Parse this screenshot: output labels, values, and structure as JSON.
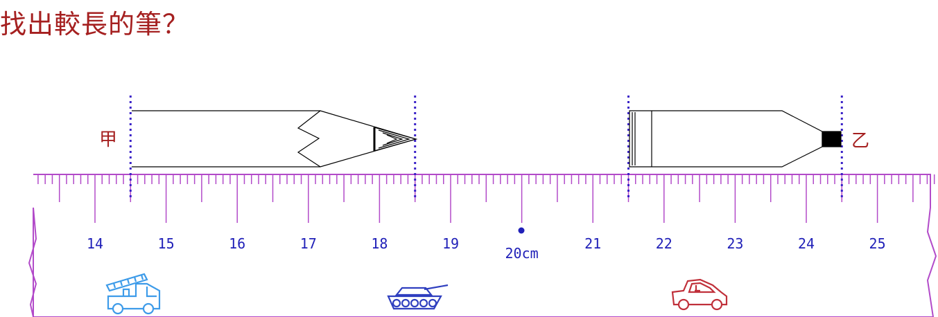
{
  "question": "找出較長的筆？",
  "pens": [
    {
      "label": "甲",
      "start_cm": 14.5,
      "end_cm": 18.5
    },
    {
      "label": "乙",
      "start_cm": 21.5,
      "end_cm": 24.5
    }
  ],
  "ruler": {
    "numbers": [
      "14",
      "15",
      "16",
      "17",
      "18",
      "19",
      "20cm",
      "21",
      "22",
      "23",
      "24",
      "25"
    ],
    "first_cm": 13.15,
    "last_cm": 25.85,
    "unit_label": "cm"
  },
  "icons": [
    "fire-truck-icon",
    "tank-icon",
    "car-icon"
  ],
  "colors": {
    "title": "#a52020",
    "ruler": "#b24ac9",
    "numbers": "#2020b8",
    "guide": "#3a22c8",
    "pencil": "#000000",
    "truck": "#3d9be9",
    "tank": "#2f3fbf",
    "car": "#c0303a"
  }
}
